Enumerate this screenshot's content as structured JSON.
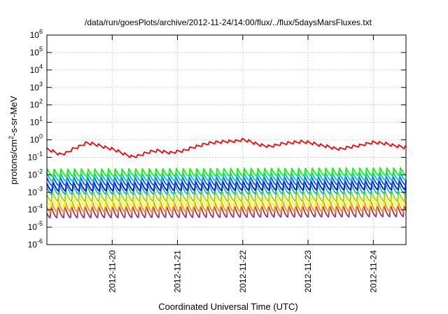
{
  "chart_data": {
    "type": "line",
    "title": "/data/run/goesPlots/archive/2012-11-24/14:00/flux/../flux/5daysMarsFluxes.txt",
    "xlabel": "Coordinated Universal Time (UTC)",
    "ylabel": {
      "base": "protons/cm",
      "sup": "2",
      "rest": "-s-sr-MeV"
    },
    "y_scale": "log",
    "ylim": [
      1e-06,
      1000000.0
    ],
    "y_ticks": [
      {
        "value": 1000000.0,
        "base": "10",
        "exp": "6"
      },
      {
        "value": 100000.0,
        "base": "10",
        "exp": "5"
      },
      {
        "value": 10000.0,
        "base": "10",
        "exp": "4"
      },
      {
        "value": 1000.0,
        "base": "10",
        "exp": "3"
      },
      {
        "value": 100.0,
        "base": "10",
        "exp": "2"
      },
      {
        "value": 10.0,
        "base": "10",
        "exp": "1"
      },
      {
        "value": 1.0,
        "base": "10",
        "exp": "0"
      },
      {
        "value": 0.1,
        "base": "10",
        "exp": "-1"
      },
      {
        "value": 0.01,
        "base": "10",
        "exp": "-2"
      },
      {
        "value": 0.001,
        "base": "10",
        "exp": "-3"
      },
      {
        "value": 0.0001,
        "base": "10",
        "exp": "-4"
      },
      {
        "value": 1e-05,
        "base": "10",
        "exp": "-5"
      },
      {
        "value": 1e-06,
        "base": "10",
        "exp": "-6"
      }
    ],
    "x_unit": "days",
    "xlim": [
      0,
      5.5
    ],
    "x_ticks": [
      {
        "value": 1,
        "label": "2012-11-20"
      },
      {
        "value": 2,
        "label": "2012-11-21"
      },
      {
        "value": 3,
        "label": "2012-11-22"
      },
      {
        "value": 4,
        "label": "2012-11-23"
      },
      {
        "value": 5,
        "label": "2012-11-24"
      }
    ],
    "grid": true,
    "sawtooth_period_days": 0.104,
    "series": [
      {
        "color": "#ff0000",
        "points": [
          [
            0.0,
            0.25
          ],
          [
            0.1,
            0.18
          ],
          [
            0.2,
            0.12
          ],
          [
            0.3,
            0.15
          ],
          [
            0.4,
            0.25
          ],
          [
            0.5,
            0.35
          ],
          [
            0.6,
            0.55
          ],
          [
            0.7,
            0.5
          ],
          [
            0.8,
            0.4
          ],
          [
            0.9,
            0.3
          ],
          [
            1.0,
            0.25
          ],
          [
            1.1,
            0.18
          ],
          [
            1.2,
            0.12
          ],
          [
            1.3,
            0.09
          ],
          [
            1.4,
            0.1
          ],
          [
            1.5,
            0.14
          ],
          [
            1.6,
            0.18
          ],
          [
            1.7,
            0.2
          ],
          [
            1.8,
            0.17
          ],
          [
            1.9,
            0.15
          ],
          [
            2.0,
            0.18
          ],
          [
            2.1,
            0.2
          ],
          [
            2.2,
            0.28
          ],
          [
            2.3,
            0.35
          ],
          [
            2.4,
            0.45
          ],
          [
            2.5,
            0.55
          ],
          [
            2.6,
            0.6
          ],
          [
            2.7,
            0.65
          ],
          [
            2.8,
            0.68
          ],
          [
            2.9,
            0.7
          ],
          [
            3.0,
            0.85
          ],
          [
            3.1,
            0.7
          ],
          [
            3.2,
            0.5
          ],
          [
            3.3,
            0.4
          ],
          [
            3.4,
            0.35
          ],
          [
            3.5,
            0.4
          ],
          [
            3.6,
            0.5
          ],
          [
            3.7,
            0.55
          ],
          [
            3.8,
            0.6
          ],
          [
            3.9,
            0.65
          ],
          [
            4.0,
            0.6
          ],
          [
            4.1,
            0.5
          ],
          [
            4.2,
            0.4
          ],
          [
            4.3,
            0.35
          ],
          [
            4.4,
            0.27
          ],
          [
            4.5,
            0.25
          ],
          [
            4.6,
            0.3
          ],
          [
            4.7,
            0.35
          ],
          [
            4.8,
            0.4
          ],
          [
            4.9,
            0.5
          ],
          [
            5.0,
            0.6
          ],
          [
            5.1,
            0.55
          ],
          [
            5.2,
            0.5
          ],
          [
            5.3,
            0.4
          ],
          [
            5.4,
            0.35
          ],
          [
            5.5,
            0.3
          ]
        ]
      },
      {
        "color": "#00ff00",
        "points": [
          [
            0.0,
            0.011
          ],
          [
            5.5,
            0.013
          ]
        ]
      },
      {
        "color": "#00b4ff",
        "points": [
          [
            0.0,
            0.006
          ],
          [
            5.5,
            0.007
          ]
        ]
      },
      {
        "color": "#0050ff",
        "points": [
          [
            0.0,
            0.0035
          ],
          [
            5.5,
            0.004
          ]
        ]
      },
      {
        "color": "#0000ff",
        "points": [
          [
            0.0,
            0.0018
          ],
          [
            5.5,
            0.0022
          ]
        ]
      },
      {
        "color": "#00c8a0",
        "points": [
          [
            0.0,
            0.0012
          ],
          [
            5.5,
            0.0013
          ]
        ]
      },
      {
        "color": "#9acd32",
        "points": [
          [
            0.0,
            0.0005
          ],
          [
            5.5,
            0.0005
          ]
        ]
      },
      {
        "color": "#ffff00",
        "points": [
          [
            0.0,
            0.00025
          ],
          [
            5.5,
            0.00028
          ]
        ]
      },
      {
        "color": "#ff8c00",
        "points": [
          [
            0.0,
            0.00012
          ],
          [
            5.5,
            0.00013
          ]
        ]
      },
      {
        "color": "#a0306a",
        "points": [
          [
            0.0,
            6e-05
          ],
          [
            5.5,
            7e-05
          ]
        ]
      }
    ]
  }
}
